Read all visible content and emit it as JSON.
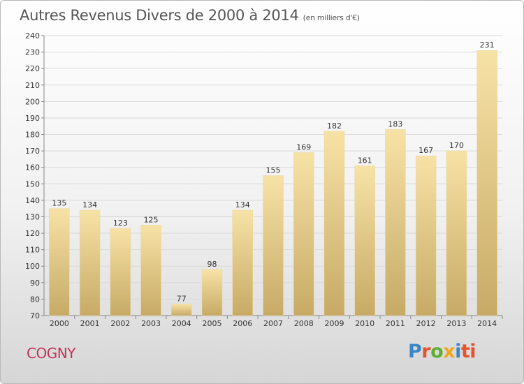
{
  "title": "Autres Revenus Divers de 2000 à 2014",
  "subtitle": "(en milliers d'€)",
  "town": "COGNY",
  "logo": [
    "P",
    "r",
    "o",
    "x",
    "i",
    "ti"
  ],
  "colors": {
    "bar_top": "#f7e2a6",
    "bar_bottom": "#c7aa66",
    "grid": "#d9d9d9",
    "axis": "#888888",
    "town": "#c0335a"
  },
  "chart_data": {
    "type": "bar",
    "title": "Autres Revenus Divers de 2000 à 2014",
    "subtitle": "(en milliers d'€)",
    "xlabel": "",
    "ylabel": "",
    "categories": [
      "2000",
      "2001",
      "2002",
      "2003",
      "2004",
      "2005",
      "2006",
      "2007",
      "2008",
      "2009",
      "2010",
      "2011",
      "2012",
      "2013",
      "2014"
    ],
    "values": [
      135,
      134,
      123,
      125,
      77,
      98,
      134,
      155,
      169,
      182,
      161,
      183,
      167,
      170,
      231
    ],
    "ylim": [
      70,
      240
    ],
    "ytick_step": 10,
    "grid": true,
    "data_labels": true
  }
}
